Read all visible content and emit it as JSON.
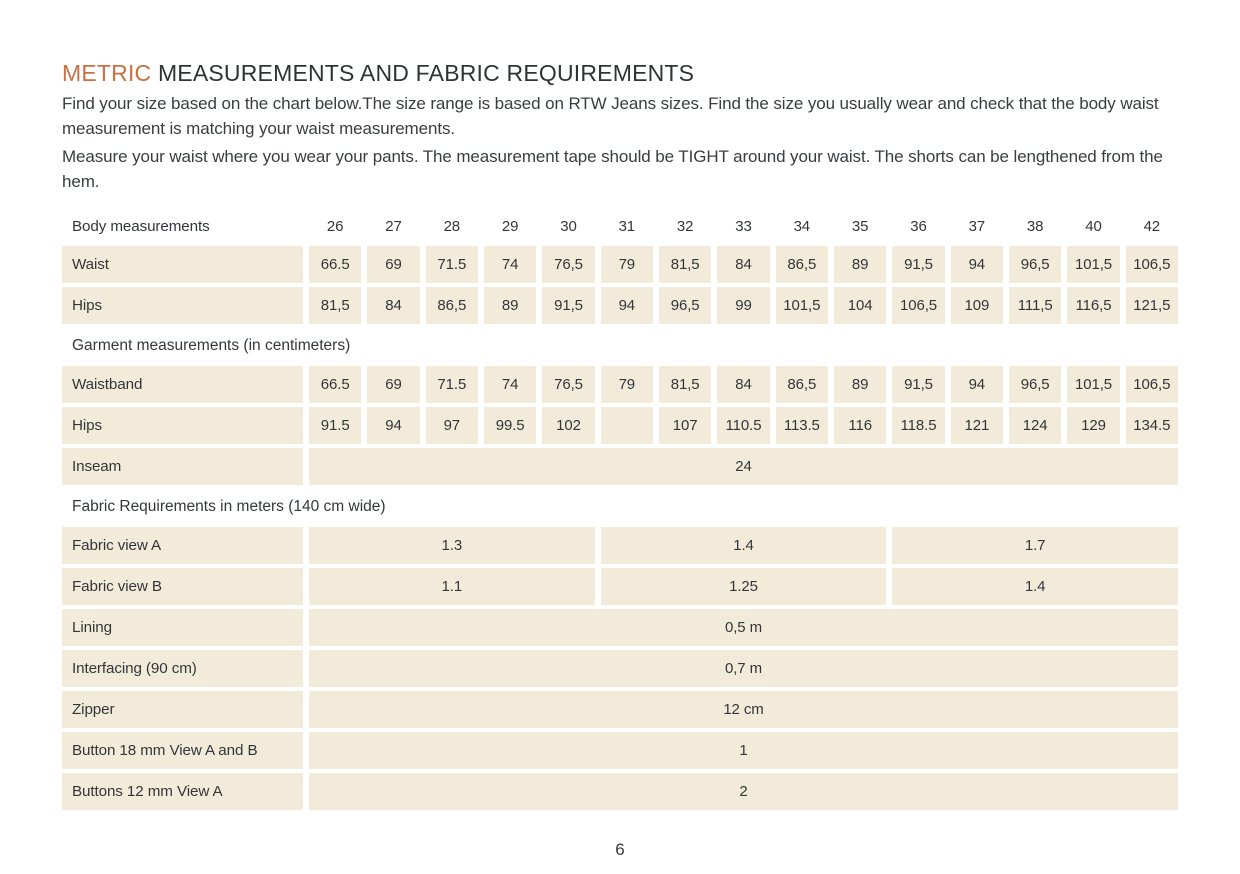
{
  "title": {
    "accent": "METRIC",
    "rest": "MEASUREMENTS AND FABRIC REQUIREMENTS"
  },
  "intro": {
    "para1": "Find your size based on the chart below.The size range is based on RTW Jeans sizes. Find the size you usually wear and check that the body waist measurement is matching your waist measurements.",
    "para2": "Measure your waist where you wear your pants. The measurement tape should be TIGHT around your waist. The shorts can be lengthened from the hem."
  },
  "colors": {
    "accent": "#c97044",
    "cell_bg": "#f2ebd9",
    "text": "#35383a"
  },
  "table": {
    "sizes_label": "Body measurements",
    "sizes": [
      "26",
      "27",
      "28",
      "29",
      "30",
      "31",
      "32",
      "33",
      "34",
      "35",
      "36",
      "37",
      "38",
      "40",
      "42"
    ],
    "body_rows": [
      {
        "label": "Waist",
        "values": [
          "66.5",
          "69",
          "71.5",
          "74",
          "76,5",
          "79",
          "81,5",
          "84",
          "86,5",
          "89",
          "91,5",
          "94",
          "96,5",
          "101,5",
          "106,5"
        ]
      },
      {
        "label": "Hips",
        "values": [
          "81,5",
          "84",
          "86,5",
          "89",
          "91,5",
          "94",
          "96,5",
          "99",
          "101,5",
          "104",
          "106,5",
          "109",
          "111,5",
          "116,5",
          "121,5"
        ]
      }
    ],
    "garment_header": "Garment measurements (in centimeters)",
    "garment_rows": [
      {
        "label": "Waistband",
        "values": [
          "66.5",
          "69",
          "71.5",
          "74",
          "76,5",
          "79",
          "81,5",
          "84",
          "86,5",
          "89",
          "91,5",
          "94",
          "96,5",
          "101,5",
          "106,5"
        ]
      },
      {
        "label": "Hips",
        "values": [
          "91.5",
          "94",
          "97",
          "99.5",
          "102",
          "",
          "107",
          "110.5",
          "113.5",
          "116",
          "118.5",
          "121",
          "124",
          "129",
          "134.5"
        ]
      }
    ],
    "inseam": {
      "label": "Inseam",
      "value": "24"
    },
    "fabric_header": "Fabric Requirements in meters (140 cm wide)",
    "fabric_rows": [
      {
        "label": "Fabric view A",
        "values": [
          "1.3",
          "1.4",
          "1.7"
        ]
      },
      {
        "label": "Fabric view B",
        "values": [
          "1.1",
          "1.25",
          "1.4"
        ]
      }
    ],
    "notion_rows": [
      {
        "label": "Lining",
        "value": "0,5 m"
      },
      {
        "label": "Interfacing (90 cm)",
        "value": "0,7 m"
      },
      {
        "label": "Zipper",
        "value": "12 cm"
      },
      {
        "label": "Button 18 mm View A and B",
        "value": "1"
      },
      {
        "label": "Buttons 12 mm View A",
        "value": "2"
      }
    ]
  },
  "footer": {
    "page_number": "6"
  }
}
